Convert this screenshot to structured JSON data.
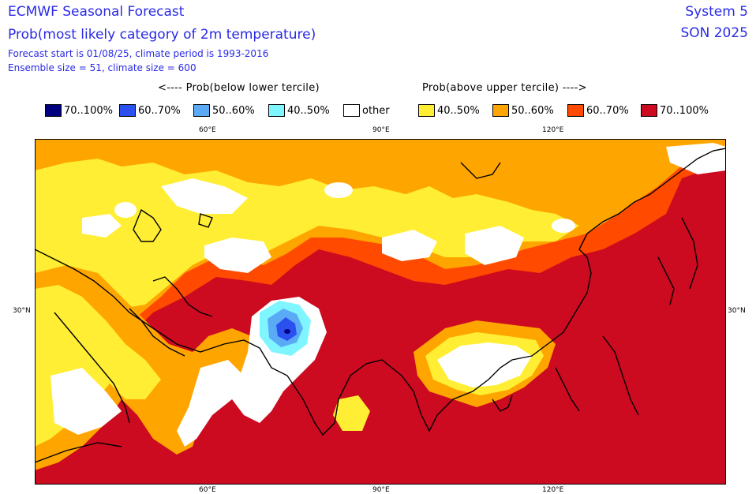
{
  "title": {
    "line1": "ECMWF Seasonal Forecast",
    "line2": "Prob(most likely category of 2m temperature)",
    "line3": "Forecast start is 01/08/25, climate period is 1993-2016",
    "line4": "Ensemble size = 51, climate size = 600",
    "system": "System 5",
    "season": "SON 2025"
  },
  "legend": {
    "below_header": "<---- Prob(below lower tercile)",
    "above_header": "Prob(above upper tercile) ---->",
    "items": [
      {
        "label": "70..100%",
        "color": "#00007f"
      },
      {
        "label": "60..70%",
        "color": "#2a50f0"
      },
      {
        "label": "50..60%",
        "color": "#5aaaf5"
      },
      {
        "label": "40..50%",
        "color": "#7ff5ff"
      },
      {
        "label": "other",
        "color": "#ffffff"
      },
      {
        "label": "40..50%",
        "color": "#ffee33"
      },
      {
        "label": "50..60%",
        "color": "#ffa500"
      },
      {
        "label": "60..70%",
        "color": "#ff4a00"
      },
      {
        "label": "70..100%",
        "color": "#cc0a20"
      }
    ]
  },
  "axes": {
    "top_ticks": [
      "60°E",
      "90°E",
      "120°E"
    ],
    "bottom_ticks": [
      "60°E",
      "90°E",
      "120°E"
    ],
    "left_tick": "30°N",
    "right_tick": "30°N"
  }
}
